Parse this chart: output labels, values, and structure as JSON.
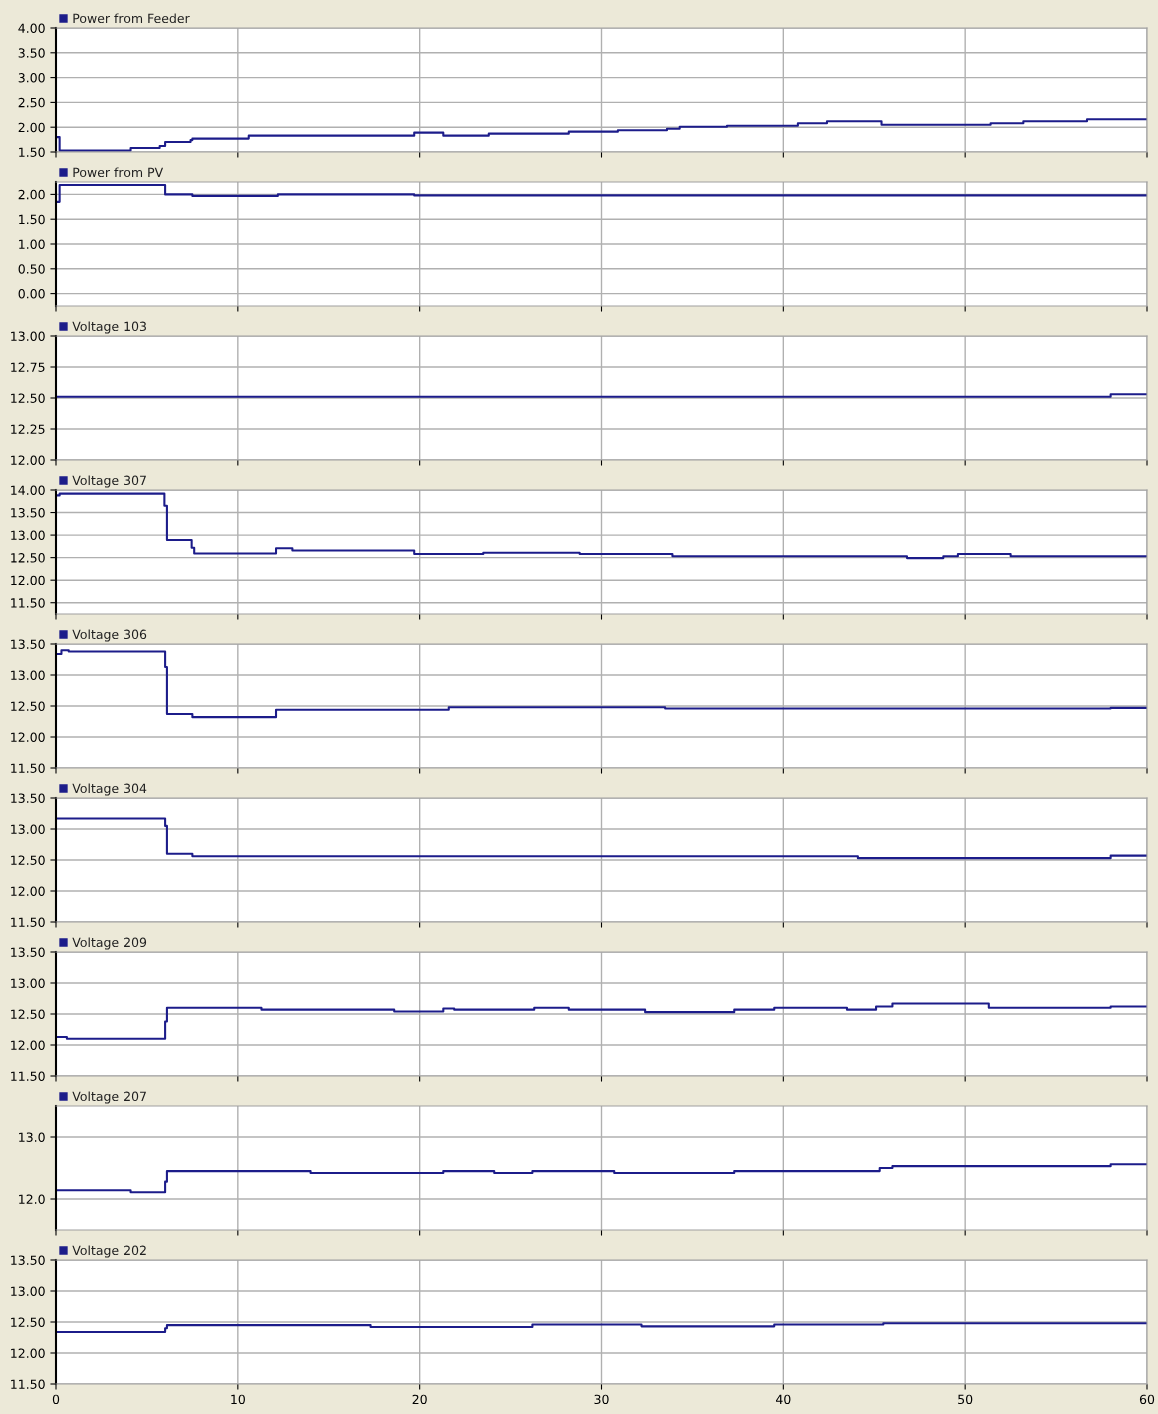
{
  "chart_data": [
    {
      "type": "step",
      "series": [
        {
          "name": "Power from Feeder",
          "color": "#1c1c8a",
          "x": [
            0,
            0.2,
            4.1,
            5.7,
            6.0,
            7.4,
            7.5,
            10.6,
            19.7,
            21.3,
            23.8,
            28.2,
            30.9,
            33.6,
            34.3,
            36.9,
            40.8,
            42.4,
            45.4,
            51.4,
            53.2,
            56.7,
            60
          ],
          "values": [
            1.8,
            1.53,
            1.58,
            1.62,
            1.7,
            1.74,
            1.77,
            1.83,
            1.89,
            1.83,
            1.87,
            1.91,
            1.94,
            1.97,
            2.01,
            2.03,
            2.08,
            2.12,
            2.05,
            2.08,
            2.12,
            2.16,
            2.16
          ]
        }
      ],
      "xlim": [
        0,
        60
      ],
      "xticks": [
        0,
        10,
        20,
        30,
        40,
        50,
        60
      ],
      "ylim": [
        1.5,
        4.0
      ],
      "yticks": [
        {
          "value": 1.5,
          "label": "1.50"
        },
        {
          "value": 2.0,
          "label": "2.00"
        },
        {
          "value": 2.5,
          "label": "2.50"
        },
        {
          "value": 3.0,
          "label": "3.00"
        },
        {
          "value": 3.5,
          "label": "3.50"
        },
        {
          "value": 4.0,
          "label": "4.00"
        }
      ],
      "grid": true,
      "legend": "top left",
      "tick_labels": "y"
    },
    {
      "type": "step",
      "series": [
        {
          "name": "Power from PV",
          "color": "#1c1c8a",
          "x": [
            0,
            0.2,
            6.0,
            7.5,
            12.2,
            19.7,
            60
          ],
          "values": [
            1.85,
            2.19,
            2.0,
            1.97,
            2.0,
            1.98,
            1.98
          ]
        }
      ],
      "xlim": [
        0,
        60
      ],
      "xticks": [
        0,
        10,
        20,
        30,
        40,
        50,
        60
      ],
      "ylim": [
        -0.25,
        2.25
      ],
      "yticks": [
        {
          "value": 0,
          "label": "0.00"
        },
        {
          "value": 0.5,
          "label": "0.50"
        },
        {
          "value": 1.0,
          "label": "1.00"
        },
        {
          "value": 1.5,
          "label": "1.50"
        },
        {
          "value": 2.0,
          "label": "2.00"
        }
      ],
      "grid": true,
      "legend": "top left",
      "tick_labels": "y"
    },
    {
      "type": "step",
      "series": [
        {
          "name": "Voltage 103",
          "color": "#1c1c8a",
          "x": [
            0,
            58.0,
            60
          ],
          "values": [
            12.51,
            12.53,
            12.53
          ]
        }
      ],
      "xlim": [
        0,
        60
      ],
      "xticks": [
        0,
        10,
        20,
        30,
        40,
        50,
        60
      ],
      "ylim": [
        12.0,
        13.0
      ],
      "yticks": [
        {
          "value": 12.0,
          "label": "12.00"
        },
        {
          "value": 12.25,
          "label": "12.25"
        },
        {
          "value": 12.5,
          "label": "12.50"
        },
        {
          "value": 12.75,
          "label": "12.75"
        },
        {
          "value": 13.0,
          "label": "13.00"
        }
      ],
      "grid": true,
      "legend": "top left",
      "tick_labels": "y"
    },
    {
      "type": "step",
      "series": [
        {
          "name": "Voltage 307",
          "color": "#1c1c8a",
          "x": [
            0,
            0.2,
            5.96,
            6.1,
            7.46,
            7.6,
            12.1,
            13.0,
            19.7,
            23.5,
            28.8,
            33.9,
            46.8,
            48.8,
            49.6,
            52.5,
            60
          ],
          "values": [
            13.88,
            13.92,
            13.65,
            12.89,
            12.72,
            12.59,
            12.71,
            12.66,
            12.58,
            12.61,
            12.58,
            12.53,
            12.49,
            12.53,
            12.58,
            12.53,
            12.53
          ]
        }
      ],
      "xlim": [
        0,
        60
      ],
      "xticks": [
        0,
        10,
        20,
        30,
        40,
        50,
        60
      ],
      "ylim": [
        11.25,
        14.0
      ],
      "yticks": [
        {
          "value": 11.5,
          "label": "11.50"
        },
        {
          "value": 12.0,
          "label": "12.00"
        },
        {
          "value": 12.5,
          "label": "12.50"
        },
        {
          "value": 13.0,
          "label": "13.00"
        },
        {
          "value": 13.5,
          "label": "13.50"
        },
        {
          "value": 14.0,
          "label": "14.00"
        }
      ],
      "grid": true,
      "legend": "top left",
      "tick_labels": "y"
    },
    {
      "type": "step",
      "series": [
        {
          "name": "Voltage 306",
          "color": "#1c1c8a",
          "x": [
            0,
            0.3,
            0.7,
            6.0,
            6.1,
            7.5,
            12.1,
            21.6,
            33.5,
            58.0,
            60
          ],
          "values": [
            13.34,
            13.4,
            13.38,
            13.13,
            12.37,
            12.32,
            12.44,
            12.48,
            12.46,
            12.47,
            12.47
          ]
        }
      ],
      "xlim": [
        0,
        60
      ],
      "xticks": [
        0,
        10,
        20,
        30,
        40,
        50,
        60
      ],
      "ylim": [
        11.5,
        13.5
      ],
      "yticks": [
        {
          "value": 11.5,
          "label": "11.50"
        },
        {
          "value": 12.0,
          "label": "12.00"
        },
        {
          "value": 12.5,
          "label": "12.50"
        },
        {
          "value": 13.0,
          "label": "13.00"
        },
        {
          "value": 13.5,
          "label": "13.50"
        }
      ],
      "grid": true,
      "legend": "top left",
      "tick_labels": "y"
    },
    {
      "type": "step",
      "series": [
        {
          "name": "Voltage 304",
          "color": "#1c1c8a",
          "x": [
            0,
            6.0,
            6.1,
            7.5,
            44.1,
            58.0,
            60
          ],
          "values": [
            13.17,
            13.05,
            12.6,
            12.56,
            12.53,
            12.57,
            12.57
          ]
        }
      ],
      "xlim": [
        0,
        60
      ],
      "xticks": [
        0,
        10,
        20,
        30,
        40,
        50,
        60
      ],
      "ylim": [
        11.5,
        13.5
      ],
      "yticks": [
        {
          "value": 11.5,
          "label": "11.50"
        },
        {
          "value": 12.0,
          "label": "12.00"
        },
        {
          "value": 12.5,
          "label": "12.50"
        },
        {
          "value": 13.0,
          "label": "13.00"
        },
        {
          "value": 13.5,
          "label": "13.50"
        }
      ],
      "grid": true,
      "legend": "top left",
      "tick_labels": "y"
    },
    {
      "type": "step",
      "series": [
        {
          "name": "Voltage 209",
          "color": "#1c1c8a",
          "x": [
            0,
            0.6,
            6.0,
            6.1,
            11.3,
            18.6,
            21.3,
            21.9,
            26.3,
            28.2,
            32.4,
            37.3,
            39.5,
            43.5,
            45.1,
            46.0,
            51.3,
            58.0,
            60
          ],
          "values": [
            12.13,
            12.1,
            12.38,
            12.6,
            12.57,
            12.54,
            12.59,
            12.57,
            12.6,
            12.57,
            12.53,
            12.57,
            12.6,
            12.57,
            12.62,
            12.67,
            12.6,
            12.62,
            12.62
          ]
        }
      ],
      "xlim": [
        0,
        60
      ],
      "xticks": [
        0,
        10,
        20,
        30,
        40,
        50,
        60
      ],
      "ylim": [
        11.5,
        13.5
      ],
      "yticks": [
        {
          "value": 11.5,
          "label": "11.50"
        },
        {
          "value": 12.0,
          "label": "12.00"
        },
        {
          "value": 12.5,
          "label": "12.50"
        },
        {
          "value": 13.0,
          "label": "13.00"
        },
        {
          "value": 13.5,
          "label": "13.50"
        }
      ],
      "grid": true,
      "legend": "top left",
      "tick_labels": "y"
    },
    {
      "type": "step",
      "series": [
        {
          "name": "Voltage 207",
          "color": "#1c1c8a",
          "x": [
            0,
            4.1,
            6.0,
            6.1,
            14.0,
            21.3,
            24.1,
            26.2,
            30.7,
            37.3,
            45.3,
            46.0,
            58.0,
            60
          ],
          "values": [
            12.14,
            12.11,
            12.28,
            12.45,
            12.42,
            12.45,
            12.42,
            12.45,
            12.42,
            12.45,
            12.5,
            12.53,
            12.56,
            12.56
          ]
        }
      ],
      "xlim": [
        0,
        60
      ],
      "xticks": [
        0,
        10,
        20,
        30,
        40,
        50,
        60
      ],
      "ylim": [
        11.5,
        13.5
      ],
      "yticks": [
        {
          "value": 12.0,
          "label": "12.0"
        },
        {
          "value": 13.0,
          "label": "13.0"
        }
      ],
      "grid": true,
      "legend": "top left",
      "tick_labels": "y"
    },
    {
      "type": "step",
      "series": [
        {
          "name": "Voltage 202",
          "color": "#1c1c8a",
          "x": [
            0,
            6.0,
            6.1,
            17.3,
            26.2,
            32.2,
            39.5,
            45.5,
            60
          ],
          "values": [
            12.34,
            12.4,
            12.45,
            12.42,
            12.46,
            12.43,
            12.46,
            12.48,
            12.48
          ]
        }
      ],
      "xlim": [
        0,
        60
      ],
      "xticks": [
        0,
        10,
        20,
        30,
        40,
        50,
        60
      ],
      "ylim": [
        11.5,
        13.5
      ],
      "yticks": [
        {
          "value": 11.5,
          "label": "11.50"
        },
        {
          "value": 12.0,
          "label": "12.00"
        },
        {
          "value": 12.5,
          "label": "12.50"
        },
        {
          "value": 13.0,
          "label": "13.00"
        },
        {
          "value": 13.5,
          "label": "13.50"
        }
      ],
      "grid": true,
      "legend": "top left"
    }
  ]
}
